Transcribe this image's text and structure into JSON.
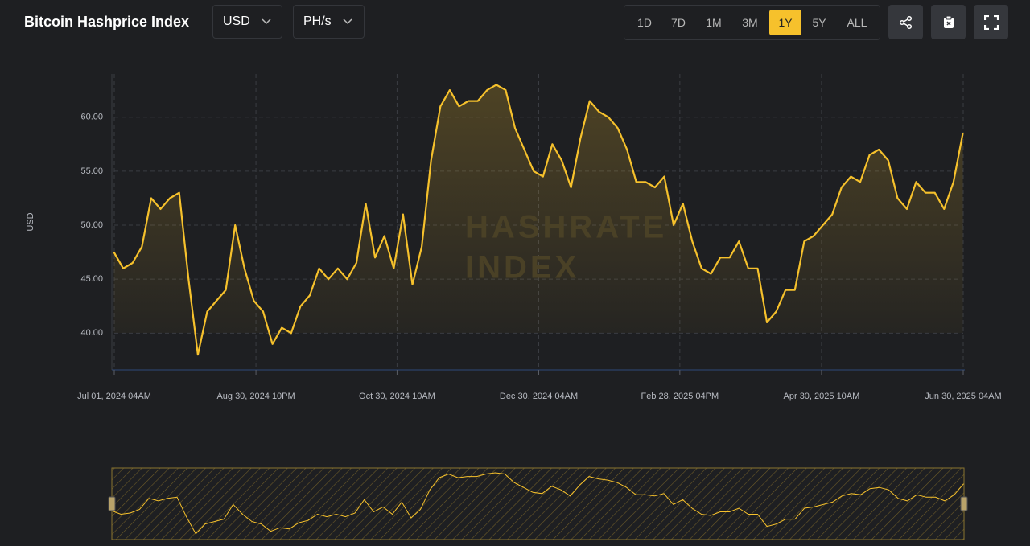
{
  "header": {
    "title": "Bitcoin Hashprice Index",
    "currency": "USD",
    "unit": "PH/s",
    "ranges": [
      "1D",
      "7D",
      "1M",
      "3M",
      "1Y",
      "5Y",
      "ALL"
    ],
    "active_range": "1Y"
  },
  "chart_data": {
    "type": "line",
    "ylabel": "USD",
    "color": "#f6c12c",
    "grid": true,
    "watermark": [
      "HASHRATE",
      "INDEX"
    ],
    "x": [
      "2024-07-01",
      "2024-07-05",
      "2024-07-09",
      "2024-07-13",
      "2024-07-17",
      "2024-07-21",
      "2024-07-25",
      "2024-07-29",
      "2024-08-02",
      "2024-08-06",
      "2024-08-10",
      "2024-08-14",
      "2024-08-18",
      "2024-08-22",
      "2024-08-26",
      "2024-08-30",
      "2024-09-03",
      "2024-09-07",
      "2024-09-11",
      "2024-09-15",
      "2024-09-19",
      "2024-09-23",
      "2024-09-27",
      "2024-10-01",
      "2024-10-05",
      "2024-10-09",
      "2024-10-13",
      "2024-10-17",
      "2024-10-21",
      "2024-10-25",
      "2024-10-29",
      "2024-11-02",
      "2024-11-06",
      "2024-11-10",
      "2024-11-14",
      "2024-11-18",
      "2024-11-22",
      "2024-11-26",
      "2024-11-30",
      "2024-12-04",
      "2024-12-08",
      "2024-12-12",
      "2024-12-16",
      "2024-12-20",
      "2024-12-24",
      "2024-12-28",
      "2025-01-01",
      "2025-01-05",
      "2025-01-09",
      "2025-01-13",
      "2025-01-17",
      "2025-01-21",
      "2025-01-25",
      "2025-01-29",
      "2025-02-02",
      "2025-02-06",
      "2025-02-10",
      "2025-02-14",
      "2025-02-18",
      "2025-02-22",
      "2025-02-26",
      "2025-03-02",
      "2025-03-06",
      "2025-03-10",
      "2025-03-14",
      "2025-03-18",
      "2025-03-22",
      "2025-03-26",
      "2025-03-30",
      "2025-04-03",
      "2025-04-07",
      "2025-04-11",
      "2025-04-15",
      "2025-04-19",
      "2025-04-23",
      "2025-04-27",
      "2025-05-01",
      "2025-05-05",
      "2025-05-09",
      "2025-05-13",
      "2025-05-17",
      "2025-05-21",
      "2025-05-25",
      "2025-05-29",
      "2025-06-02",
      "2025-06-06",
      "2025-06-10",
      "2025-06-14",
      "2025-06-18",
      "2025-06-22",
      "2025-06-26",
      "2025-06-30"
    ],
    "values": [
      47.5,
      46,
      46.5,
      48,
      52.5,
      51.5,
      52.5,
      53,
      45,
      38,
      42,
      43,
      44,
      50,
      46,
      43,
      42,
      39,
      40.5,
      40,
      42.5,
      43.5,
      46,
      45,
      46,
      45,
      46.5,
      52,
      47,
      49,
      46,
      51,
      44.5,
      48,
      56,
      61,
      62.5,
      61,
      61.5,
      61.5,
      62.5,
      63,
      62.5,
      59,
      57,
      55,
      54.5,
      57.5,
      56,
      53.5,
      58,
      61.5,
      60.5,
      60,
      59,
      57,
      54,
      54,
      53.5,
      54.5,
      50,
      52,
      48.5,
      46,
      45.5,
      47,
      47,
      48.5,
      46,
      46,
      41,
      42,
      44,
      44,
      48.5,
      49,
      50,
      51,
      53.5,
      54.5,
      54,
      56.5,
      57,
      56,
      52.5,
      51.5,
      54,
      53,
      53,
      51.5,
      54,
      58.5
    ],
    "xlim": [
      "2024-07-01T04:00Z",
      "2025-06-30T04:00Z"
    ],
    "xticks": [
      {
        "value": "2024-07-01T04:00Z",
        "label": "Jul 01, 2024 04AM"
      },
      {
        "value": "2024-08-30T22:00Z",
        "label": "Aug 30, 2024 10PM"
      },
      {
        "value": "2024-10-30T10:00Z",
        "label": "Oct 30, 2024 10AM"
      },
      {
        "value": "2024-12-30T04:00Z",
        "label": "Dec 30, 2024 04AM"
      },
      {
        "value": "2025-02-28T16:00Z",
        "label": "Feb 28, 2025 04PM"
      },
      {
        "value": "2025-04-30T10:00Z",
        "label": "Apr 30, 2025 10AM"
      },
      {
        "value": "2025-06-30T04:00Z",
        "label": "Jun 30, 2025 04AM"
      }
    ],
    "ylim": [
      36.6,
      64
    ],
    "yticks": [
      {
        "value": 40,
        "label": "40.00"
      },
      {
        "value": 45,
        "label": "45.00"
      },
      {
        "value": 50,
        "label": "50.00"
      },
      {
        "value": 55,
        "label": "55.00"
      },
      {
        "value": 60,
        "label": "60.00"
      }
    ]
  }
}
